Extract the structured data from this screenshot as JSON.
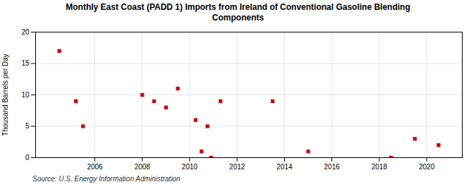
{
  "chart_data": {
    "type": "scatter",
    "title": "Monthly East Coast (PADD 1) Imports from Ireland of Conventional Gasoline Blending\nComponents",
    "y_label": "Thousand Barrels per Day",
    "source": "Source: U.S. Energy Information Administration",
    "x": [
      2004.5,
      2005.2,
      2005.5,
      2008.0,
      2008.5,
      2009.0,
      2009.5,
      2010.25,
      2010.5,
      2010.75,
      2010.9,
      2011.3,
      2013.5,
      2015.0,
      2018.5,
      2019.5,
      2020.5
    ],
    "values": [
      17.0,
      9.0,
      5.0,
      10.0,
      9.0,
      8.0,
      11.0,
      6.0,
      1.0,
      5.0,
      0.0,
      9.0,
      9.0,
      1.0,
      0.0,
      3.0,
      2.0
    ],
    "color": "#cc0000",
    "marker": "square",
    "xlim": [
      2003.5,
      2021.5
    ],
    "ylim": [
      0,
      20
    ],
    "xticks": [
      2006,
      2008,
      2010,
      2012,
      2014,
      2016,
      2018,
      2020
    ],
    "yticks": [
      0,
      5,
      10,
      15,
      20
    ],
    "grid": true
  }
}
